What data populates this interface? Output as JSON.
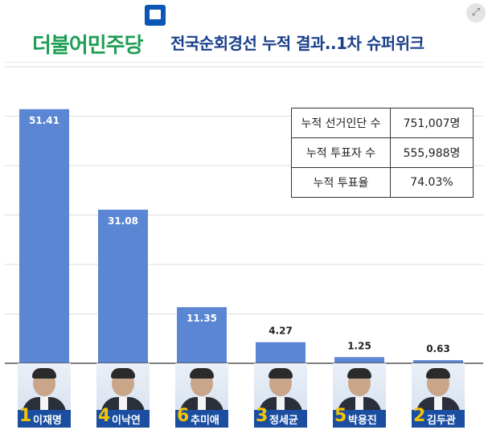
{
  "header": {
    "logo_text": "더불어민주당",
    "title": "전국순회경선 누적 결과..1차 슈퍼위크"
  },
  "colors": {
    "bar": "#5b86d4",
    "logo_green": "#1f9e55",
    "title_navy": "#1a3f8a",
    "nameplate": "#1b4ea0",
    "number_yellow": "#f5c400"
  },
  "chart_data": {
    "type": "bar",
    "categories": [
      "이재명",
      "이낙연",
      "추미애",
      "정세균",
      "박용진",
      "김두관"
    ],
    "values": [
      51.41,
      31.08,
      11.35,
      4.27,
      1.25,
      0.63
    ],
    "value_labels": [
      "51.41",
      "31.08",
      "11.35",
      "4.27",
      "1.25",
      "0.63"
    ],
    "candidate_numbers": [
      "1",
      "4",
      "6",
      "3",
      "5",
      "2"
    ],
    "title": "",
    "xlabel": "",
    "ylabel": "",
    "ylim": [
      0,
      60
    ],
    "grid": true
  },
  "stats_table": [
    {
      "label": "누적 선거인단 수",
      "value": "751,007명"
    },
    {
      "label": "누적 투표자 수",
      "value": "555,988명"
    },
    {
      "label": "누적 투표율",
      "value": "74.03%"
    }
  ],
  "icons": {
    "expand": "expand-icon"
  }
}
